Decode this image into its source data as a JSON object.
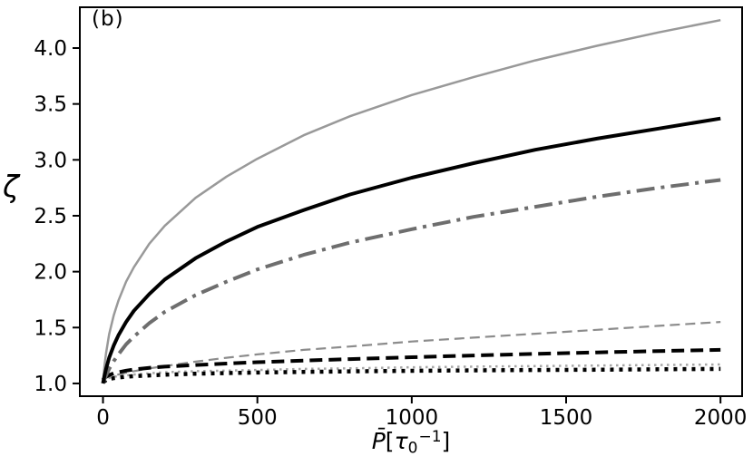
{
  "chart_data": {
    "type": "line",
    "panel_label": "(b)",
    "title": "",
    "ylabel": "ζ",
    "xlabel": "P̄[τ₀⁻¹]",
    "xlabel_parts": {
      "var": "P̄",
      "open": "[",
      "tau": "τ",
      "sub": "0",
      "sup": "−1",
      "close": "]"
    },
    "xlim": [
      -75,
      2070
    ],
    "ylim": [
      0.886,
      4.365
    ],
    "grid": false,
    "legend": "none",
    "axis_color": "#000000",
    "xticks": [
      {
        "value": 0,
        "label": "0"
      },
      {
        "value": 500,
        "label": "500"
      },
      {
        "value": 1000,
        "label": "1000"
      },
      {
        "value": 1500,
        "label": "1500"
      },
      {
        "value": 2000,
        "label": "2000"
      }
    ],
    "yticks": [
      {
        "value": 1.0,
        "label": "1.0"
      },
      {
        "value": 1.5,
        "label": "1.5"
      },
      {
        "value": 2.0,
        "label": "2.0"
      },
      {
        "value": 2.5,
        "label": "2.5"
      },
      {
        "value": 3.0,
        "label": "3.0"
      },
      {
        "value": 3.5,
        "label": "3.5"
      },
      {
        "value": 4.0,
        "label": "4.0"
      }
    ],
    "x": [
      0,
      5,
      10,
      20,
      35,
      50,
      75,
      100,
      150,
      200,
      300,
      400,
      500,
      650,
      800,
      1000,
      1200,
      1400,
      1600,
      1800,
      2000
    ],
    "series": [
      {
        "name": "dotted-gray",
        "linestyle": "dotted",
        "color": "#a6a6a6",
        "width": 2.5,
        "dash": "2.5,4.5",
        "y": [
          1.02,
          1.03,
          1.04,
          1.05,
          1.06,
          1.065,
          1.072,
          1.08,
          1.09,
          1.1,
          1.11,
          1.115,
          1.12,
          1.13,
          1.135,
          1.145,
          1.15,
          1.155,
          1.16,
          1.165,
          1.17
        ]
      },
      {
        "name": "dotted-black",
        "linestyle": "dotted",
        "color": "#000000",
        "width": 4.5,
        "dash": "4,6",
        "y": [
          1.015,
          1.02,
          1.03,
          1.04,
          1.048,
          1.053,
          1.06,
          1.065,
          1.072,
          1.078,
          1.087,
          1.093,
          1.098,
          1.103,
          1.108,
          1.113,
          1.117,
          1.12,
          1.123,
          1.127,
          1.13
        ]
      },
      {
        "name": "dashed-gray",
        "linestyle": "dashed",
        "color": "#8c8c8c",
        "width": 2.2,
        "dash": "11,6",
        "y": [
          1.03,
          1.04,
          1.05,
          1.06,
          1.07,
          1.08,
          1.095,
          1.11,
          1.135,
          1.155,
          1.195,
          1.23,
          1.26,
          1.3,
          1.33,
          1.375,
          1.41,
          1.445,
          1.48,
          1.515,
          1.55
        ]
      },
      {
        "name": "dashed-black",
        "linestyle": "dashed",
        "color": "#000000",
        "width": 4,
        "dash": "14,7",
        "y": [
          1.03,
          1.05,
          1.06,
          1.075,
          1.09,
          1.1,
          1.115,
          1.125,
          1.14,
          1.15,
          1.165,
          1.178,
          1.19,
          1.205,
          1.218,
          1.235,
          1.25,
          1.265,
          1.278,
          1.29,
          1.3
        ]
      },
      {
        "name": "dashdot-gray",
        "linestyle": "dashdot",
        "color": "#6e6e6e",
        "width": 4,
        "dash": "20,7,4,7",
        "y": [
          1.0,
          1.04,
          1.07,
          1.13,
          1.2,
          1.26,
          1.35,
          1.42,
          1.54,
          1.64,
          1.79,
          1.91,
          2.02,
          2.15,
          2.26,
          2.38,
          2.49,
          2.58,
          2.67,
          2.75,
          2.82
        ]
      },
      {
        "name": "solid-gray",
        "linestyle": "solid",
        "color": "#999999",
        "width": 2.5,
        "dash": "",
        "y": [
          1.0,
          1.16,
          1.27,
          1.44,
          1.61,
          1.74,
          1.91,
          2.04,
          2.25,
          2.41,
          2.66,
          2.85,
          3.01,
          3.22,
          3.39,
          3.58,
          3.74,
          3.89,
          4.02,
          4.14,
          4.25
        ]
      },
      {
        "name": "solid-black",
        "linestyle": "solid",
        "color": "#000000",
        "width": 4,
        "dash": "",
        "y": [
          1.0,
          1.07,
          1.13,
          1.23,
          1.34,
          1.43,
          1.55,
          1.65,
          1.8,
          1.93,
          2.12,
          2.27,
          2.4,
          2.55,
          2.69,
          2.84,
          2.97,
          3.09,
          3.19,
          3.28,
          3.37
        ]
      }
    ]
  }
}
